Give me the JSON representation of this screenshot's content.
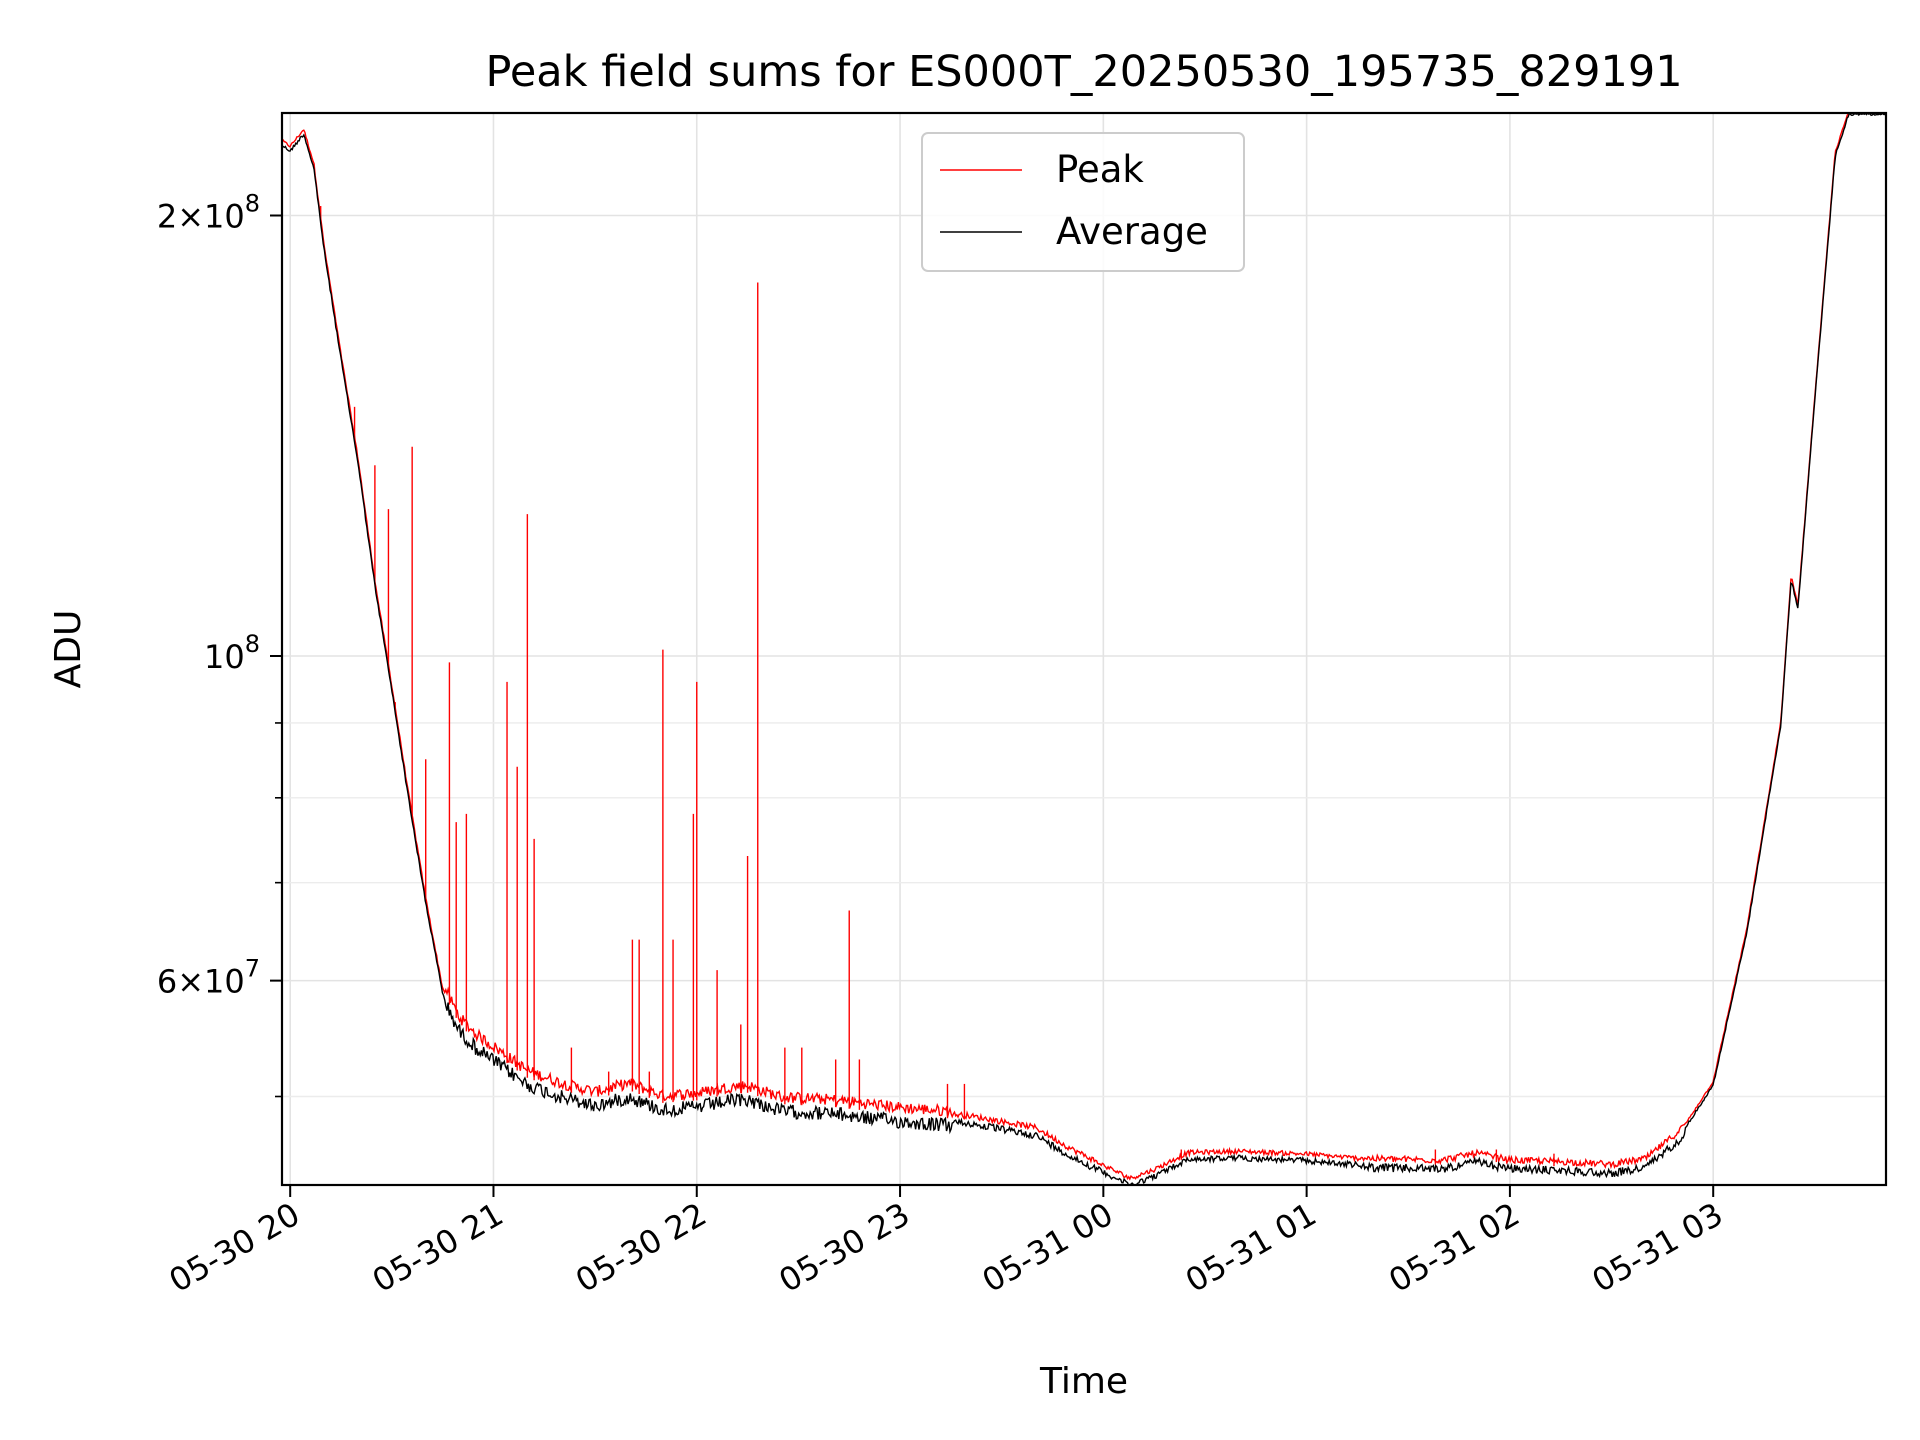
{
  "chart_data": {
    "type": "line",
    "title": "Peak field sums for ES000T_20250530_195735_829191",
    "xlabel": "Time",
    "ylabel": "ADU",
    "yscale": "log",
    "ylim": [
      43500000,
      235000000
    ],
    "xlim": [
      "2025-05-30 19:57:35",
      "2025-05-31 03:51:00"
    ],
    "grid": true,
    "legend_position": "top-center",
    "x_ticks": [
      {
        "t": "2025-05-30 20:00",
        "label": "05-30 20"
      },
      {
        "t": "2025-05-30 21:00",
        "label": "05-30 21"
      },
      {
        "t": "2025-05-30 22:00",
        "label": "05-30 22"
      },
      {
        "t": "2025-05-30 23:00",
        "label": "05-30 23"
      },
      {
        "t": "2025-05-31 00:00",
        "label": "05-31 00"
      },
      {
        "t": "2025-05-31 01:00",
        "label": "05-31 01"
      },
      {
        "t": "2025-05-31 02:00",
        "label": "05-31 02"
      },
      {
        "t": "2025-05-31 03:00",
        "label": "05-31 03"
      }
    ],
    "y_major_ticks": [
      {
        "value": 60000000,
        "base": "6",
        "exp": "7"
      },
      {
        "value": 100000000,
        "base": "",
        "exp": "8"
      },
      {
        "value": 200000000,
        "base": "2",
        "exp": "8"
      }
    ],
    "y_minor_ticks": [
      50000000,
      70000000,
      80000000,
      90000000
    ],
    "series": [
      {
        "name": "Average",
        "color": "#000000",
        "points": [
          [
            "2025-05-30 19:57:35",
            224000000
          ],
          [
            "2025-05-30 20:00",
            222000000
          ],
          [
            "2025-05-30 20:04",
            228000000
          ],
          [
            "2025-05-30 20:07",
            216000000
          ],
          [
            "2025-05-30 20:10",
            190000000
          ],
          [
            "2025-05-30 20:15",
            160000000
          ],
          [
            "2025-05-30 20:20",
            136000000
          ],
          [
            "2025-05-30 20:25",
            112000000
          ],
          [
            "2025-05-30 20:30",
            95000000
          ],
          [
            "2025-05-30 20:35",
            80000000
          ],
          [
            "2025-05-30 20:40",
            68000000
          ],
          [
            "2025-05-30 20:45",
            59000000
          ],
          [
            "2025-05-30 20:50",
            56000000
          ],
          [
            "2025-05-30 20:55",
            54500000
          ],
          [
            "2025-05-30 21:00",
            53500000
          ],
          [
            "2025-05-30 21:10",
            51500000
          ],
          [
            "2025-05-30 21:20",
            50500000
          ],
          [
            "2025-05-30 21:30",
            49800000
          ],
          [
            "2025-05-30 21:40",
            50500000
          ],
          [
            "2025-05-30 21:50",
            49500000
          ],
          [
            "2025-05-30 22:00",
            49700000
          ],
          [
            "2025-05-30 22:10",
            50200000
          ],
          [
            "2025-05-30 22:15",
            50300000
          ],
          [
            "2025-05-30 22:25",
            49400000
          ],
          [
            "2025-05-30 22:40",
            49200000
          ],
          [
            "2025-05-30 23:00",
            48600000
          ],
          [
            "2025-05-30 23:20",
            48200000
          ],
          [
            "2025-05-30 23:40",
            47300000
          ],
          [
            "2025-05-30 23:50",
            45800000
          ],
          [
            "2025-05-31 00:00",
            44600000
          ],
          [
            "2025-05-31 00:08",
            43700000
          ],
          [
            "2025-05-31 00:15",
            44300000
          ],
          [
            "2025-05-31 00:25",
            45500000
          ],
          [
            "2025-05-31 00:40",
            45600000
          ],
          [
            "2025-05-31 01:00",
            45400000
          ],
          [
            "2025-05-31 01:20",
            45000000
          ],
          [
            "2025-05-31 01:40",
            44900000
          ],
          [
            "2025-05-31 01:50",
            45400000
          ],
          [
            "2025-05-31 02:00",
            44900000
          ],
          [
            "2025-05-31 02:15",
            44800000
          ],
          [
            "2025-05-31 02:30",
            44600000
          ],
          [
            "2025-05-31 02:40",
            45000000
          ],
          [
            "2025-05-31 02:50",
            47000000
          ],
          [
            "2025-05-31 03:00",
            51000000
          ],
          [
            "2025-05-31 03:10",
            65000000
          ],
          [
            "2025-05-31 03:20",
            90000000
          ],
          [
            "2025-05-31 03:23",
            113000000
          ],
          [
            "2025-05-31 03:25",
            108000000
          ],
          [
            "2025-05-31 03:30",
            150000000
          ],
          [
            "2025-05-31 03:36",
            220000000
          ],
          [
            "2025-05-31 03:40",
            235000000
          ],
          [
            "2025-05-31 03:51",
            235000000
          ]
        ]
      },
      {
        "name": "Peak",
        "color": "#ff0000",
        "spikes": [
          [
            "2025-05-30 20:09",
            203000000
          ],
          [
            "2025-05-30 20:19",
            148000000
          ],
          [
            "2025-05-30 20:25",
            135000000
          ],
          [
            "2025-05-30 20:29",
            126000000
          ],
          [
            "2025-05-30 20:31",
            93000000
          ],
          [
            "2025-05-30 20:36",
            139000000
          ],
          [
            "2025-05-30 20:40",
            85000000
          ],
          [
            "2025-05-30 20:47",
            99000000
          ],
          [
            "2025-05-30 20:49",
            77000000
          ],
          [
            "2025-05-30 20:52",
            78000000
          ],
          [
            "2025-05-30 21:04",
            96000000
          ],
          [
            "2025-05-30 21:07",
            84000000
          ],
          [
            "2025-05-30 21:10",
            125000000
          ],
          [
            "2025-05-30 21:12",
            75000000
          ],
          [
            "2025-05-30 21:23",
            54000000
          ],
          [
            "2025-05-30 21:34",
            52000000
          ],
          [
            "2025-05-30 21:41",
            64000000
          ],
          [
            "2025-05-30 21:43",
            64000000
          ],
          [
            "2025-05-30 21:46",
            52000000
          ],
          [
            "2025-05-30 21:50",
            101000000
          ],
          [
            "2025-05-30 21:53",
            64000000
          ],
          [
            "2025-05-30 21:59",
            78000000
          ],
          [
            "2025-05-30 22:00",
            96000000
          ],
          [
            "2025-05-30 22:06",
            61000000
          ],
          [
            "2025-05-30 22:13",
            56000000
          ],
          [
            "2025-05-30 22:15",
            73000000
          ],
          [
            "2025-05-30 22:18",
            180000000
          ],
          [
            "2025-05-30 22:26",
            54000000
          ],
          [
            "2025-05-30 22:31",
            54000000
          ],
          [
            "2025-05-30 22:41",
            53000000
          ],
          [
            "2025-05-30 22:45",
            67000000
          ],
          [
            "2025-05-30 22:48",
            53000000
          ],
          [
            "2025-05-30 23:14",
            51000000
          ],
          [
            "2025-05-30 23:19",
            51000000
          ],
          [
            "2025-05-31 00:23",
            46000000
          ],
          [
            "2025-05-31 01:38",
            46000000
          ],
          [
            "2025-05-31 01:56",
            46000000
          ],
          [
            "2025-05-31 02:13",
            45700000
          ]
        ]
      }
    ]
  }
}
